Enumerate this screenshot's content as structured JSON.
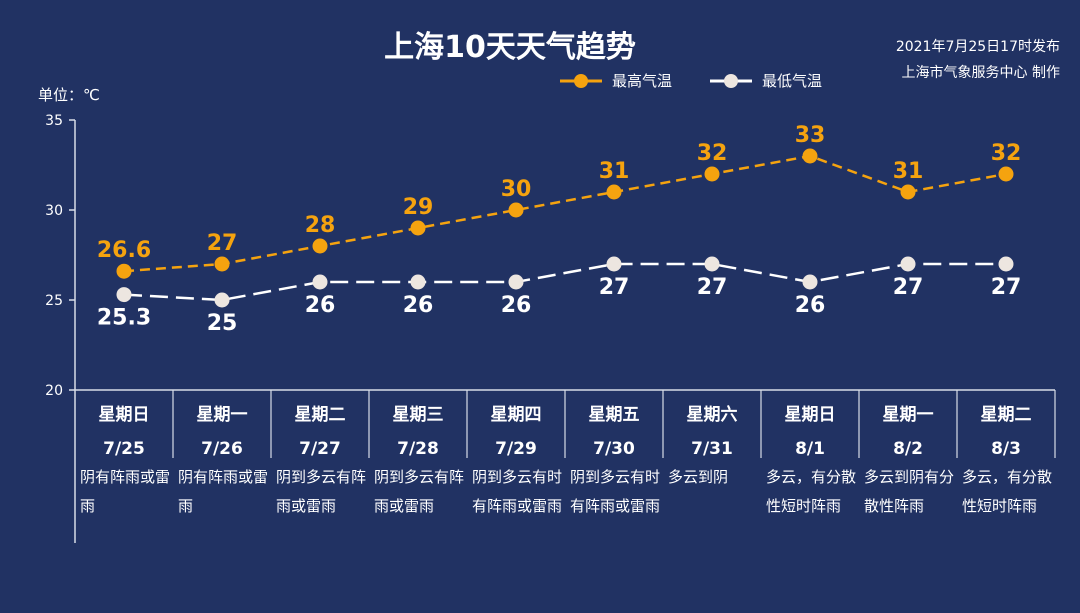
{
  "title": "上海10天天气趋势",
  "publish": {
    "line1": "2021年7月25日17时发布",
    "line2": "上海市气象服务中心 制作"
  },
  "unit_label": "单位：℃",
  "legend": {
    "high": "最高气温",
    "low": "最低气温"
  },
  "colors": {
    "background": "#213263",
    "high": "#f5a30f",
    "low": "#ffffff",
    "low_marker": "#ede6e0",
    "axis": "#d8dde8"
  },
  "days": [
    {
      "weekday": "星期日",
      "date": "7/25",
      "desc": "阴有阵雨或雷雨"
    },
    {
      "weekday": "星期一",
      "date": "7/26",
      "desc": "阴有阵雨或雷雨"
    },
    {
      "weekday": "星期二",
      "date": "7/27",
      "desc": "阴到多云有阵雨或雷雨"
    },
    {
      "weekday": "星期三",
      "date": "7/28",
      "desc": "阴到多云有阵雨或雷雨"
    },
    {
      "weekday": "星期四",
      "date": "7/29",
      "desc": "阴到多云有时有阵雨或雷雨"
    },
    {
      "weekday": "星期五",
      "date": "7/30",
      "desc": "阴到多云有时有阵雨或雷雨"
    },
    {
      "weekday": "星期六",
      "date": "7/31",
      "desc": "多云到阴"
    },
    {
      "weekday": "星期日",
      "date": "8/1",
      "desc": "多云，有分散性短时阵雨"
    },
    {
      "weekday": "星期一",
      "date": "8/2",
      "desc": "多云到阴有分散性阵雨"
    },
    {
      "weekday": "星期二",
      "date": "8/3",
      "desc": "多云，有分散性短时阵雨"
    }
  ],
  "chart_data": {
    "type": "line",
    "title": "上海10天天气趋势",
    "categories": [
      "7/25",
      "7/26",
      "7/27",
      "7/28",
      "7/29",
      "7/30",
      "7/31",
      "8/1",
      "8/2",
      "8/3"
    ],
    "ylim": [
      20,
      35
    ],
    "yticks": [
      20,
      25,
      30,
      35
    ],
    "ylabel": "单位：℃",
    "grid": false,
    "legend_position": "top-center",
    "series": [
      {
        "name": "最高气温",
        "values": [
          26.6,
          27,
          28,
          29,
          30,
          31,
          32,
          33,
          31,
          32
        ],
        "labels": [
          "26.6",
          "27",
          "28",
          "29",
          "30",
          "31",
          "32",
          "33",
          "31",
          "32"
        ],
        "label_position": "above",
        "dashed": true
      },
      {
        "name": "最低气温",
        "values": [
          25.3,
          25,
          26,
          26,
          26,
          27,
          27,
          26,
          27,
          27
        ],
        "labels": [
          "25.3",
          "25",
          "26",
          "26",
          "26",
          "27",
          "27",
          "26",
          "27",
          "27"
        ],
        "label_position": "below",
        "dashed": true
      }
    ]
  }
}
